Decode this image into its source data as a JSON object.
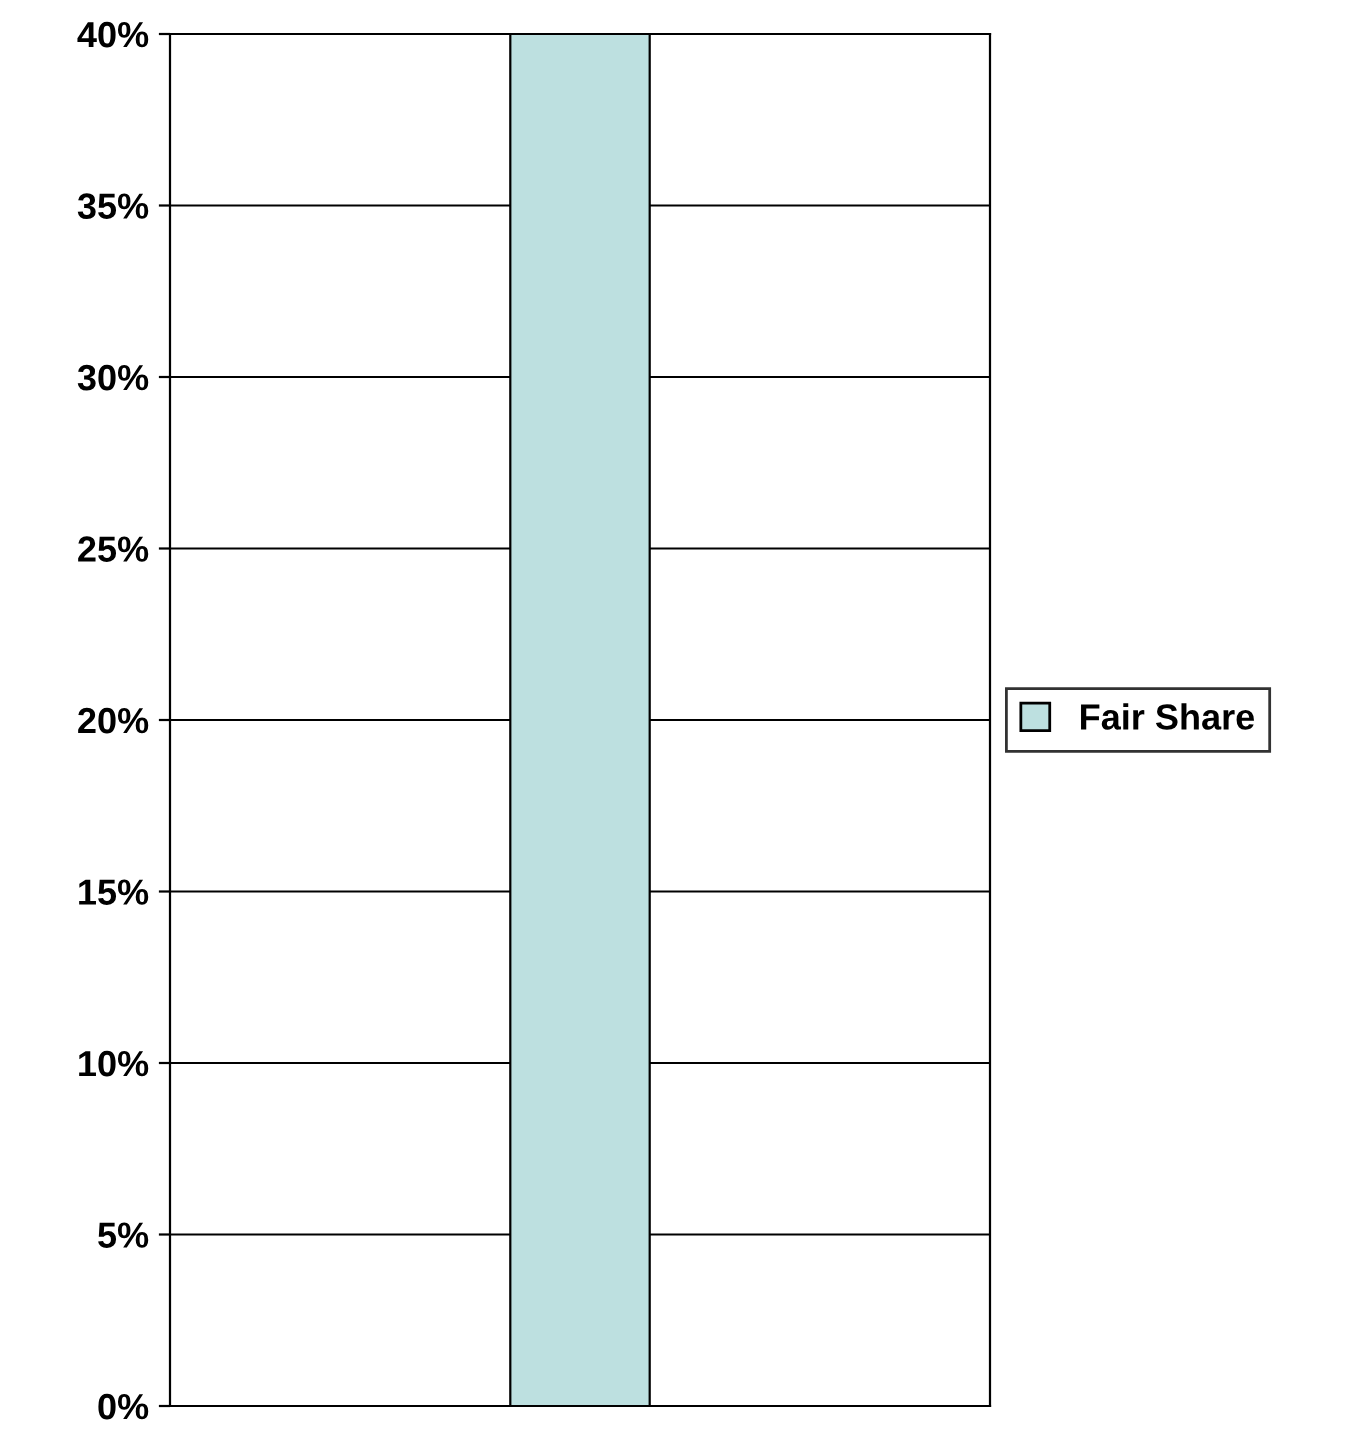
{
  "chart_data": {
    "type": "bar",
    "categories": [
      null
    ],
    "series": [
      {
        "name": "Fair Share",
        "color": "#bde0e0",
        "values": [
          40
        ]
      }
    ],
    "ylim": [
      0,
      40
    ],
    "yticks": [
      {
        "value": 0,
        "label": "0%"
      },
      {
        "value": 5,
        "label": "5%"
      },
      {
        "value": 10,
        "label": "10%"
      },
      {
        "value": 15,
        "label": "15%"
      },
      {
        "value": 20,
        "label": "20%"
      },
      {
        "value": 25,
        "label": "25%"
      },
      {
        "value": 30,
        "label": "30%"
      },
      {
        "value": 35,
        "label": "35%"
      },
      {
        "value": 40,
        "label": "40%"
      }
    ],
    "grid": "y",
    "legend": "right"
  }
}
